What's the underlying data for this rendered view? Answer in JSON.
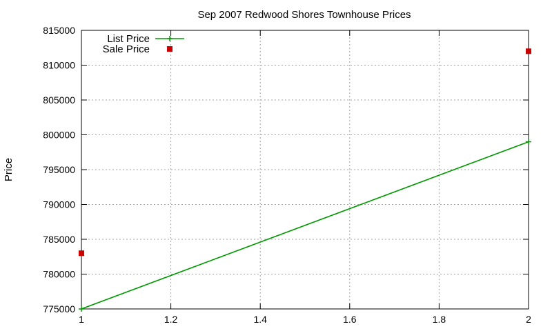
{
  "chart_data": {
    "type": "line",
    "title": "Sep 2007 Redwood Shores Townhouse Prices",
    "xlabel": "",
    "ylabel": "Price",
    "xlim": [
      1,
      2
    ],
    "ylim": [
      775000,
      815000
    ],
    "xticks": [
      "1",
      "1.2",
      "1.4",
      "1.6",
      "1.8",
      "2"
    ],
    "yticks": [
      "775000",
      "780000",
      "785000",
      "790000",
      "795000",
      "800000",
      "805000",
      "810000",
      "815000"
    ],
    "grid": true,
    "legend_position": "top-left",
    "series": [
      {
        "name": "List Price",
        "style": "linespoints",
        "marker": "plus",
        "color": "#009900",
        "points": [
          [
            1,
            775000
          ],
          [
            2,
            799000
          ]
        ]
      },
      {
        "name": "Sale Price",
        "style": "points",
        "marker": "square",
        "color": "#cc0000",
        "points": [
          [
            1,
            783000
          ],
          [
            2,
            812000
          ]
        ]
      }
    ]
  }
}
